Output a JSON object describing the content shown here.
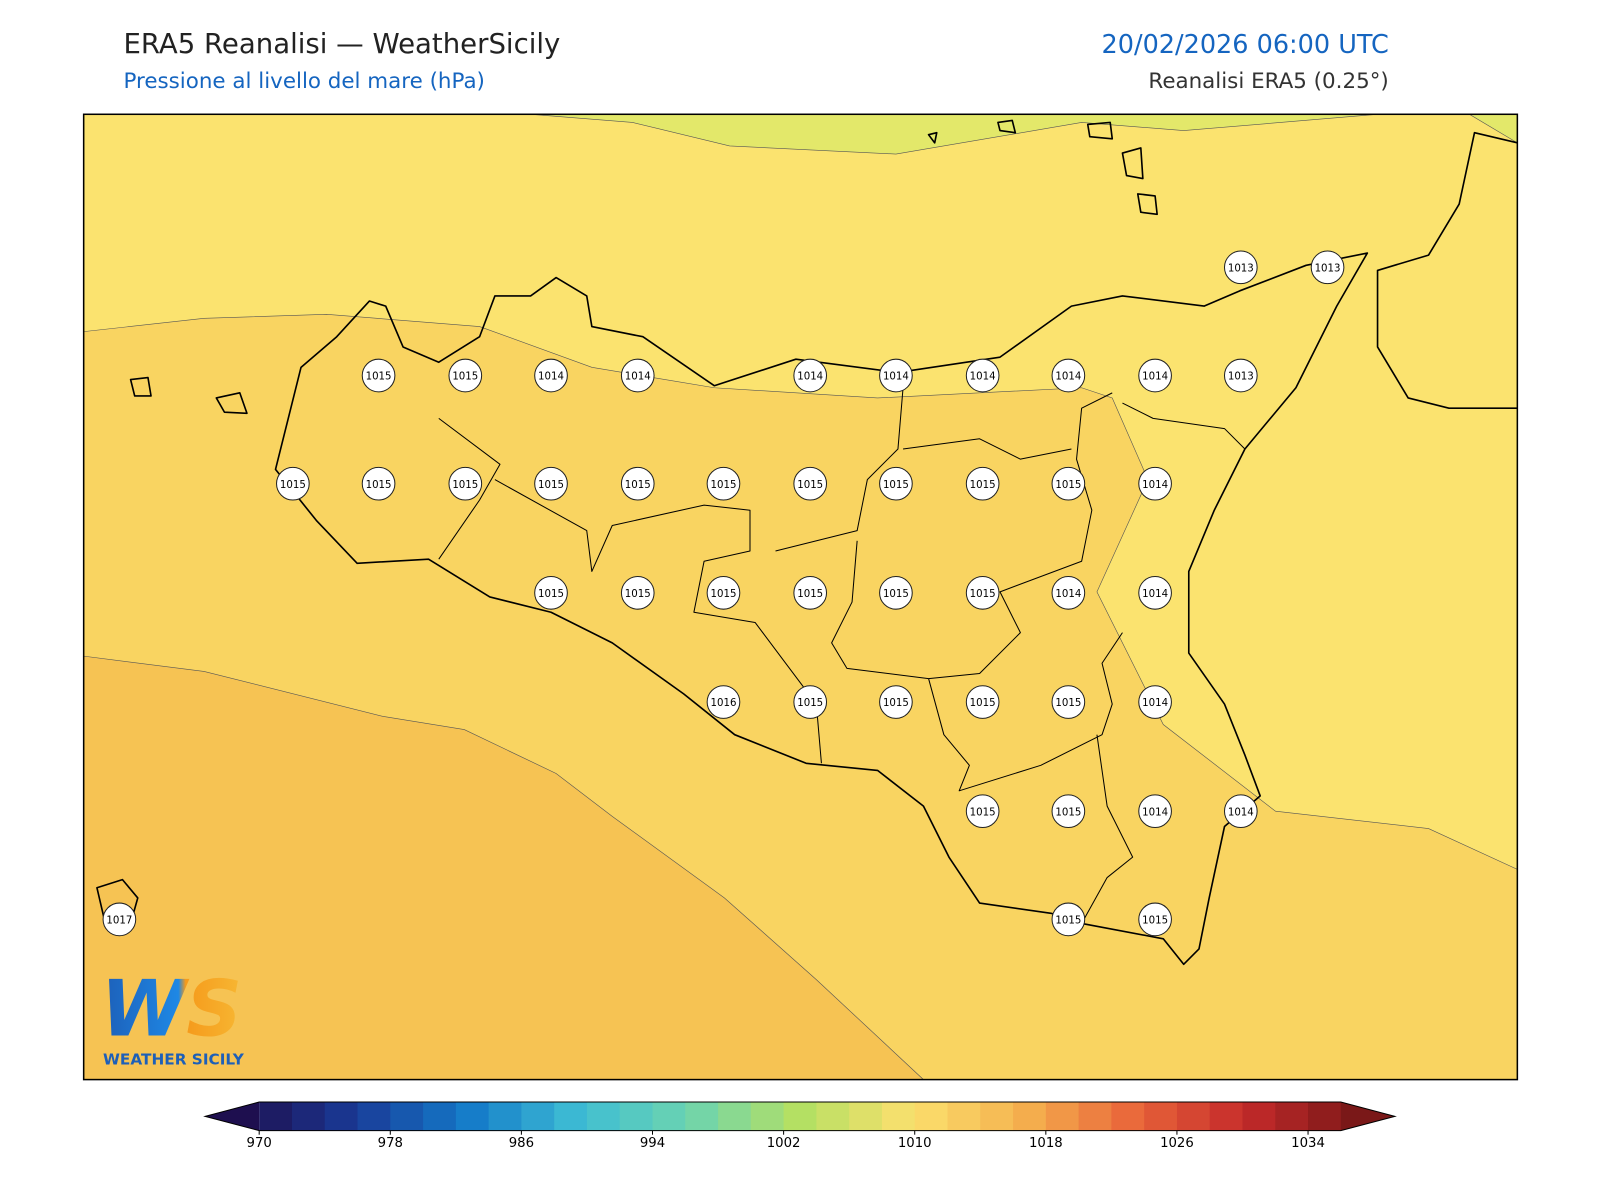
{
  "header": {
    "title": "ERA5 Reanalisi — WeatherSicily",
    "subtitle": "Pressione al livello del mare (hPa)",
    "datetime": "20/02/2026 06:00 UTC",
    "source": "Reanalisi ERA5 (0.25°)"
  },
  "pressure_labels": [
    1013,
    1013,
    1015,
    1015,
    1014,
    1014,
    1014,
    1014,
    1014,
    1014,
    1014,
    1013,
    1015,
    1015,
    1015,
    1015,
    1015,
    1015,
    1015,
    1015,
    1015,
    1015,
    1014,
    1015,
    1015,
    1015,
    1015,
    1015,
    1015,
    1014,
    1014,
    1016,
    1015,
    1015,
    1015,
    1015,
    1014,
    1015,
    1015,
    1014,
    1014,
    1017,
    1015,
    1015
  ],
  "colorbar": {
    "lim": [
      970,
      1036
    ],
    "step": 2,
    "ticks": [
      970,
      978,
      986,
      994,
      1002,
      1010,
      1018,
      1026,
      1034
    ],
    "colors": [
      "#1e0f4f",
      "#1a3a96",
      "#1479c8",
      "#3dbcd4",
      "#6cd4b0",
      "#b4e063",
      "#fbe06e",
      "#f5b24e",
      "#e9653a",
      "#c42a2a",
      "#7a1818"
    ]
  },
  "logo": {
    "mark": "WS",
    "name": "WEATHER SICILY"
  }
}
